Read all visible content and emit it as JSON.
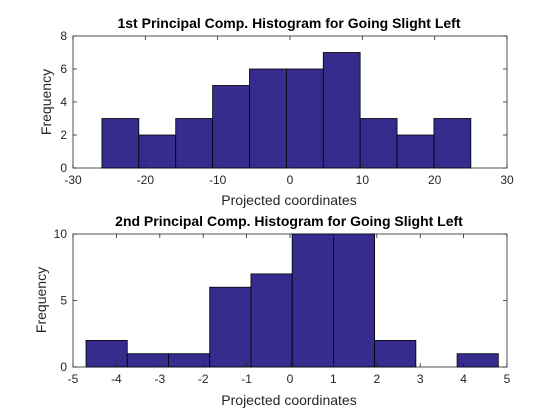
{
  "chart_data": [
    {
      "type": "bar",
      "title": "1st Principal Comp. Histogram for Going Slight Left",
      "xlabel": "Projected coordinates",
      "ylabel": "Frequency",
      "xlim": [
        -30,
        30
      ],
      "ylim": [
        0,
        8
      ],
      "xticks": [
        -30,
        -20,
        -10,
        0,
        10,
        20,
        30
      ],
      "yticks": [
        0,
        2,
        4,
        6,
        8
      ],
      "bin_edges": [
        -26.0,
        -20.9,
        -15.8,
        -10.7,
        -5.6,
        -0.5,
        4.6,
        9.7,
        14.8,
        19.9,
        25.0
      ],
      "values": [
        3,
        2,
        3,
        5,
        6,
        6,
        7,
        3,
        2,
        3
      ],
      "bar_color": "#352C8E",
      "edge_color": "#000000",
      "grid": false
    },
    {
      "type": "bar",
      "title": "2nd Principal Comp. Histogram for Going Slight Left",
      "xlabel": "Projected coordinates",
      "ylabel": "Frequency",
      "xlim": [
        -5,
        5
      ],
      "ylim": [
        0,
        10
      ],
      "xticks": [
        -5,
        -4,
        -3,
        -2,
        -1,
        0,
        1,
        2,
        3,
        4,
        5
      ],
      "yticks": [
        0,
        5,
        10
      ],
      "bin_edges": [
        -4.7,
        -3.75,
        -2.8,
        -1.85,
        -0.9,
        0.05,
        1.0,
        1.95,
        2.9,
        3.85,
        4.8
      ],
      "values": [
        2,
        1,
        1,
        6,
        7,
        10,
        10,
        2,
        0,
        1
      ],
      "bar_color": "#352C8E",
      "edge_color": "#000000",
      "grid": false
    }
  ]
}
